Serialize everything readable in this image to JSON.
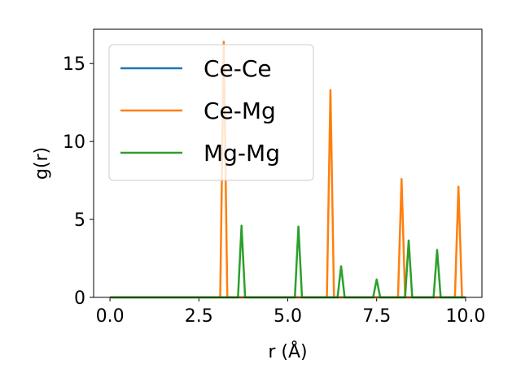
{
  "chart_data": {
    "type": "line",
    "xlabel": "r (Å)",
    "ylabel": "g(r)",
    "xlim": [
      -0.46,
      10.46
    ],
    "ylim": [
      0,
      17.2
    ],
    "xticks": [
      0.0,
      2.5,
      5.0,
      7.5,
      10.0
    ],
    "xtick_labels": [
      "0.0",
      "2.5",
      "5.0",
      "7.5",
      "10.0"
    ],
    "yticks": [
      0,
      5,
      10,
      15
    ],
    "ytick_labels": [
      "0",
      "5",
      "10",
      "15"
    ],
    "grid": false,
    "legend_position": "top-left",
    "series": [
      {
        "name": "Ce-Ce",
        "color": "#1f77b4",
        "x": [
          0.0,
          10.0
        ],
        "y": [
          0.0,
          0.0
        ]
      },
      {
        "name": "Ce-Mg",
        "color": "#ff7f0e",
        "x": [
          0.0,
          3.1,
          3.2,
          3.3,
          6.1,
          6.2,
          6.3,
          8.1,
          8.2,
          8.3,
          9.7,
          9.8,
          9.9,
          10.0
        ],
        "y": [
          0.0,
          0.0,
          16.4,
          0.0,
          0.0,
          13.3,
          0.0,
          0.0,
          7.6,
          0.0,
          0.0,
          7.1,
          0.0,
          0.0
        ]
      },
      {
        "name": "Mg-Mg",
        "color": "#2ca02c",
        "x": [
          0.0,
          3.6,
          3.7,
          3.8,
          5.2,
          5.3,
          5.4,
          6.4,
          6.5,
          6.6,
          7.4,
          7.5,
          7.6,
          8.3,
          8.4,
          8.5,
          9.1,
          9.2,
          9.3,
          10.0
        ],
        "y": [
          0.0,
          0.0,
          4.6,
          0.0,
          0.0,
          4.55,
          0.0,
          0.0,
          2.0,
          0.0,
          0.0,
          1.15,
          0.0,
          0.0,
          3.65,
          0.0,
          0.0,
          3.05,
          0.0,
          0.0
        ]
      }
    ]
  }
}
